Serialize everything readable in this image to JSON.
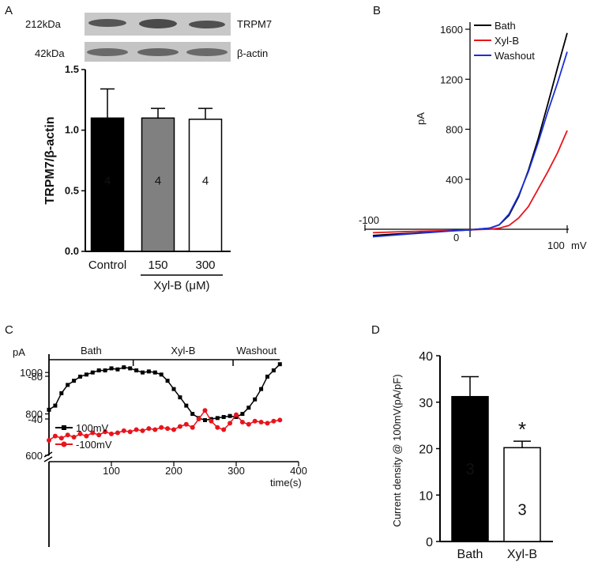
{
  "panels": {
    "A": "A",
    "B": "B",
    "C": "C",
    "D": "D"
  },
  "chart_data": [
    {
      "panel": "A",
      "type": "bar",
      "blot": {
        "rows": [
          {
            "size": "212kDa",
            "protein": "TRPM7"
          },
          {
            "size": "42kDa",
            "protein": "β-actin"
          }
        ]
      },
      "categories": [
        "Control",
        "150",
        "300"
      ],
      "values": [
        1.1,
        1.1,
        1.09
      ],
      "errors": [
        0.24,
        0.08,
        0.09
      ],
      "n_labels": [
        "4",
        "4",
        "4"
      ],
      "colors": [
        "#000000",
        "#808080",
        "#ffffff"
      ],
      "ylabel": "TRPM7/β-actin",
      "xlabel": "Xyl-B (μM)",
      "ylim": [
        0,
        1.5
      ],
      "yticks": [
        0.0,
        0.5,
        1.0,
        1.5
      ],
      "ytick_labels": [
        "0.0",
        "0.5",
        "1.0",
        "1.5"
      ]
    },
    {
      "panel": "B",
      "type": "line",
      "xlabel": "mV",
      "ylabel": "pA",
      "xlim": [
        -100,
        100
      ],
      "ylim": [
        0,
        1600
      ],
      "yticks": [
        400,
        800,
        1200,
        1600
      ],
      "ytick_labels": [
        "400",
        "800",
        "1200",
        "1600"
      ],
      "xtick_labels": {
        "min": "-100",
        "zero": "0",
        "max": "100"
      },
      "series": [
        {
          "name": "Bath",
          "color": "#000000",
          "x": [
            -100,
            -80,
            -60,
            -40,
            -20,
            0,
            10,
            20,
            30,
            40,
            50,
            60,
            70,
            80,
            90,
            100
          ],
          "y": [
            -50,
            -40,
            -32,
            -22,
            -12,
            -5,
            2,
            8,
            35,
            110,
            260,
            470,
            720,
            1000,
            1290,
            1570
          ]
        },
        {
          "name": "Xyl-B",
          "color": "#e8141c",
          "x": [
            -100,
            -80,
            -60,
            -40,
            -20,
            0,
            10,
            20,
            30,
            40,
            50,
            60,
            70,
            80,
            90,
            100
          ],
          "y": [
            -28,
            -22,
            -18,
            -14,
            -10,
            -5,
            -2,
            0,
            8,
            30,
            90,
            180,
            320,
            460,
            610,
            790
          ]
        },
        {
          "name": "Washout",
          "color": "#1a2fd8",
          "x": [
            -100,
            -80,
            -60,
            -40,
            -20,
            0,
            10,
            20,
            30,
            40,
            50,
            60,
            70,
            80,
            90,
            100
          ],
          "y": [
            -60,
            -48,
            -36,
            -25,
            -14,
            -6,
            2,
            8,
            35,
            120,
            270,
            460,
            690,
            940,
            1170,
            1420
          ]
        }
      ]
    },
    {
      "panel": "C",
      "type": "line",
      "ylabel": "pA",
      "xlabel": "time(s)",
      "xlim": [
        0,
        400
      ],
      "xticks": [
        100,
        200,
        300,
        400
      ],
      "xtick_labels": [
        "100",
        "200",
        "300",
        "400"
      ],
      "upper_ylim": [
        600,
        1100
      ],
      "upper_yticks": [
        600,
        800,
        1000
      ],
      "upper_ytick_labels": [
        "600",
        "800",
        "1000"
      ],
      "lower_ylim": [
        -80,
        0
      ],
      "lower_yticks": [
        -40,
        -80
      ],
      "lower_ytick_labels": [
        "-40",
        "-80"
      ],
      "periods": [
        {
          "label": "Bath",
          "start": 0,
          "end": 135
        },
        {
          "label": "Xyl-B",
          "start": 135,
          "end": 295
        },
        {
          "label": "Washout",
          "start": 295,
          "end": 370
        }
      ],
      "series": [
        {
          "name": "100mV",
          "color": "#000000",
          "marker": "square",
          "x": [
            0,
            10,
            20,
            30,
            40,
            50,
            60,
            70,
            80,
            90,
            100,
            110,
            120,
            130,
            140,
            150,
            160,
            170,
            180,
            190,
            200,
            210,
            220,
            230,
            240,
            250,
            260,
            270,
            280,
            290,
            300,
            310,
            320,
            330,
            340,
            350,
            360,
            370
          ],
          "y": [
            820,
            840,
            900,
            940,
            960,
            980,
            990,
            1000,
            1010,
            1010,
            1020,
            1015,
            1025,
            1020,
            1010,
            1000,
            1005,
            1000,
            990,
            960,
            920,
            880,
            840,
            800,
            780,
            770,
            775,
            780,
            785,
            790,
            785,
            800,
            830,
            870,
            920,
            980,
            1010,
            1040
          ]
        },
        {
          "name": "-100mV",
          "color": "#e8141c",
          "marker": "circle",
          "x": [
            0,
            10,
            20,
            30,
            40,
            50,
            60,
            70,
            80,
            90,
            100,
            110,
            120,
            130,
            140,
            150,
            160,
            170,
            180,
            190,
            200,
            210,
            220,
            230,
            240,
            250,
            260,
            270,
            280,
            290,
            300,
            310,
            320,
            330,
            340,
            350,
            360,
            370
          ],
          "y": [
            -20,
            -24,
            -22,
            -25,
            -23,
            -26,
            -24,
            -27,
            -25,
            -28,
            -26,
            -27,
            -29,
            -28,
            -30,
            -29,
            -31,
            -30,
            -32,
            -31,
            -30,
            -33,
            -35,
            -32,
            -40,
            -48,
            -38,
            -32,
            -30,
            -36,
            -44,
            -37,
            -35,
            -38,
            -37,
            -36,
            -38,
            -39
          ]
        }
      ]
    },
    {
      "panel": "D",
      "type": "bar",
      "categories": [
        "Bath",
        "Xyl-B"
      ],
      "values": [
        31.2,
        20.2
      ],
      "errors": [
        4.3,
        1.4
      ],
      "n_labels": [
        "3",
        "3"
      ],
      "colors": [
        "#000000",
        "#ffffff"
      ],
      "significance": "*",
      "ylabel": "Current density @ 100mV(pA/pF)",
      "ylim": [
        0,
        40
      ],
      "yticks": [
        0,
        10,
        20,
        30,
        40
      ],
      "ytick_labels": [
        "0",
        "10",
        "20",
        "30",
        "40"
      ]
    }
  ]
}
